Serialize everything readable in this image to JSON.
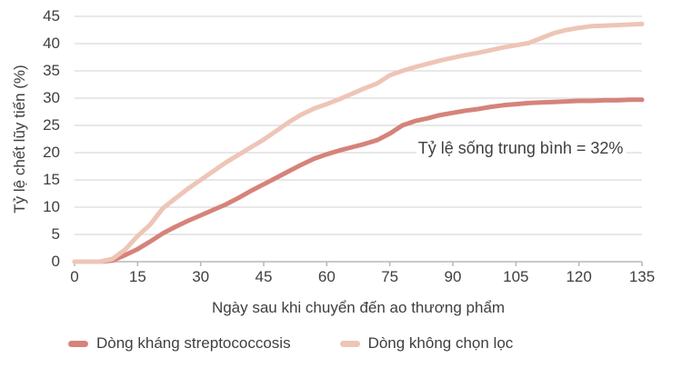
{
  "chart_data": {
    "type": "line",
    "title": "",
    "xlabel": "Ngày sau khi chuyển đến ao thương phẩm",
    "ylabel": "Tỷ lệ chết lũy tiến (%)",
    "xlim": [
      0,
      135
    ],
    "ylim": [
      0,
      45
    ],
    "x_ticks": [
      0,
      15,
      30,
      45,
      60,
      75,
      90,
      105,
      120,
      135
    ],
    "y_ticks": [
      0,
      5,
      10,
      15,
      20,
      25,
      30,
      35,
      40,
      45
    ],
    "grid": "horizontal gridlines at every 5%",
    "legend_position": "bottom",
    "annotation": {
      "text": "Tỷ lệ sống trung bình = 32%",
      "day": 81.3,
      "pct": 20.8
    },
    "x": [
      0,
      3,
      6,
      9,
      12,
      15,
      18,
      21,
      24,
      27,
      30,
      33,
      36,
      39,
      42,
      45,
      48,
      51,
      54,
      57,
      60,
      63,
      66,
      69,
      72,
      75,
      78,
      81,
      84,
      87,
      90,
      93,
      96,
      99,
      102,
      105,
      108,
      111,
      114,
      117,
      120,
      123,
      126,
      129,
      132,
      135
    ],
    "series": [
      {
        "name": "Dòng kháng streptococcosis",
        "color": "#d6837a",
        "values": [
          0,
          0,
          0,
          0.2,
          1.2,
          2.3,
          3.7,
          5.2,
          6.4,
          7.5,
          8.5,
          9.5,
          10.5,
          11.7,
          13,
          14.2,
          15.4,
          16.6,
          17.8,
          18.9,
          19.7,
          20.4,
          21,
          21.6,
          22.3,
          23.5,
          25,
          25.8,
          26.3,
          26.9,
          27.3,
          27.7,
          28,
          28.4,
          28.7,
          28.9,
          29.1,
          29.2,
          29.3,
          29.4,
          29.5,
          29.5,
          29.6,
          29.6,
          29.7,
          29.7
        ]
      },
      {
        "name": "Dòng không chọn lọc",
        "color": "#eec5b7",
        "values": [
          0,
          0,
          0,
          0.5,
          2.2,
          4.7,
          6.8,
          9.8,
          11.6,
          13.4,
          15,
          16.6,
          18.2,
          19.6,
          21,
          22.4,
          24,
          25.6,
          27,
          28.1,
          28.9,
          29.8,
          30.8,
          31.8,
          32.7,
          34.2,
          35,
          35.7,
          36.3,
          36.9,
          37.4,
          37.9,
          38.3,
          38.8,
          39.3,
          39.7,
          40.1,
          41,
          41.9,
          42.5,
          42.9,
          43.2,
          43.3,
          43.4,
          43.5,
          43.6
        ]
      }
    ]
  },
  "colors": {
    "gridline": "#d9d9d9",
    "axis": "#b7b7b7",
    "text": "#3f3f3f",
    "background": "#ffffff"
  }
}
